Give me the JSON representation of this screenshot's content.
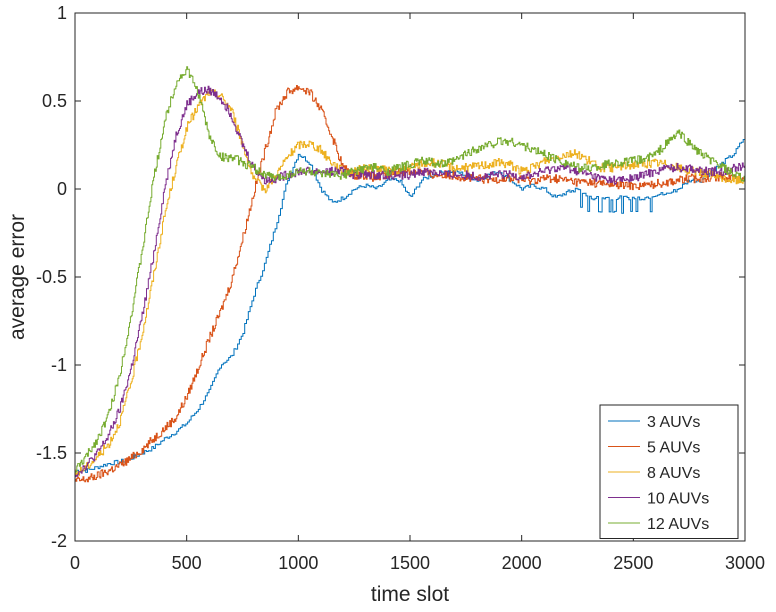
{
  "chart_data": {
    "type": "line",
    "xlabel": "time slot",
    "ylabel": "average error",
    "xlim": [
      0,
      3000
    ],
    "ylim": [
      -2,
      1
    ],
    "xticks": [
      0,
      500,
      1000,
      1500,
      2000,
      2500,
      3000
    ],
    "yticks": [
      -2,
      -1.5,
      -1,
      -0.5,
      0,
      0.5,
      1
    ],
    "xtick_labels": [
      "0",
      "500",
      "1000",
      "1500",
      "2000",
      "2500",
      "3000"
    ],
    "ytick_labels": [
      "-2",
      "-1.5",
      "-1",
      "-0.5",
      "0",
      "0.5",
      "1"
    ],
    "grid": false,
    "legend_position": "bottom-right",
    "series": [
      {
        "name": "3 AUVs",
        "color": "#0072BD",
        "x": [
          0,
          50,
          100,
          150,
          200,
          250,
          300,
          350,
          400,
          450,
          500,
          550,
          600,
          650,
          700,
          750,
          800,
          850,
          900,
          950,
          1000,
          1050,
          1100,
          1150,
          1200,
          1250,
          1300,
          1350,
          1400,
          1450,
          1500,
          1550,
          1600,
          1650,
          1700,
          1750,
          1800,
          1850,
          1900,
          1950,
          2000,
          2050,
          2100,
          2150,
          2200,
          2250,
          2300,
          2350,
          2400,
          2450,
          2500,
          2550,
          2600,
          2650,
          2700,
          2750,
          2800,
          2850,
          2900,
          2950,
          3000
        ],
        "y": [
          -1.6,
          -1.6,
          -1.58,
          -1.56,
          -1.55,
          -1.53,
          -1.5,
          -1.47,
          -1.42,
          -1.38,
          -1.33,
          -1.25,
          -1.15,
          -1.0,
          -0.95,
          -0.82,
          -0.6,
          -0.42,
          -0.2,
          0.05,
          0.2,
          0.15,
          0.0,
          -0.08,
          -0.05,
          0.0,
          0.02,
          0.0,
          0.05,
          0.05,
          -0.05,
          0.05,
          0.08,
          0.1,
          0.1,
          0.08,
          0.05,
          0.08,
          0.1,
          0.05,
          0.0,
          0.02,
          0.0,
          -0.05,
          -0.02,
          0.0,
          -0.05,
          -0.05,
          -0.05,
          -0.05,
          -0.05,
          -0.05,
          -0.03,
          -0.03,
          0.0,
          0.05,
          0.05,
          0.1,
          0.15,
          0.2,
          0.3
        ]
      },
      {
        "name": "5 AUVs",
        "color": "#D95319",
        "x": [
          0,
          50,
          100,
          150,
          200,
          250,
          300,
          350,
          400,
          450,
          500,
          550,
          600,
          650,
          700,
          750,
          800,
          850,
          900,
          950,
          1000,
          1050,
          1100,
          1150,
          1200,
          1250,
          1300,
          1350,
          1400,
          1450,
          1500,
          1550,
          1600,
          1650,
          1700,
          1750,
          1800,
          1850,
          1900,
          1950,
          2000,
          2050,
          2100,
          2150,
          2200,
          2250,
          2300,
          2350,
          2400,
          2450,
          2500,
          2550,
          2600,
          2650,
          2700,
          2750,
          2800,
          2850,
          2900,
          2950,
          3000
        ],
        "y": [
          -1.66,
          -1.65,
          -1.63,
          -1.6,
          -1.57,
          -1.53,
          -1.48,
          -1.42,
          -1.36,
          -1.3,
          -1.18,
          -1.02,
          -0.85,
          -0.7,
          -0.52,
          -0.28,
          -0.02,
          0.22,
          0.45,
          0.55,
          0.58,
          0.55,
          0.45,
          0.3,
          0.12,
          0.08,
          0.08,
          0.06,
          0.08,
          0.1,
          0.1,
          0.1,
          0.08,
          0.08,
          0.08,
          0.06,
          0.06,
          0.05,
          0.06,
          0.06,
          0.05,
          0.05,
          0.06,
          0.06,
          0.05,
          0.04,
          0.04,
          0.03,
          0.03,
          0.02,
          0.02,
          0.02,
          0.03,
          0.04,
          0.05,
          0.06,
          0.06,
          0.07,
          0.07,
          0.06,
          0.06
        ]
      },
      {
        "name": "8 AUVs",
        "color": "#EDB120",
        "x": [
          0,
          50,
          100,
          150,
          200,
          250,
          300,
          350,
          400,
          450,
          500,
          550,
          600,
          650,
          700,
          750,
          800,
          850,
          900,
          950,
          1000,
          1050,
          1100,
          1150,
          1200,
          1250,
          1300,
          1350,
          1400,
          1450,
          1500,
          1550,
          1600,
          1650,
          1700,
          1750,
          1800,
          1850,
          1900,
          1950,
          2000,
          2050,
          2100,
          2150,
          2200,
          2250,
          2300,
          2350,
          2400,
          2450,
          2500,
          2550,
          2600,
          2650,
          2700,
          2750,
          2800,
          2850,
          2900,
          2950,
          3000
        ],
        "y": [
          -1.62,
          -1.58,
          -1.52,
          -1.45,
          -1.32,
          -1.1,
          -0.82,
          -0.5,
          -0.15,
          0.12,
          0.35,
          0.47,
          0.55,
          0.53,
          0.45,
          0.25,
          0.05,
          0.0,
          0.08,
          0.18,
          0.25,
          0.26,
          0.22,
          0.15,
          0.1,
          0.1,
          0.12,
          0.12,
          0.1,
          0.1,
          0.12,
          0.14,
          0.15,
          0.14,
          0.12,
          0.12,
          0.13,
          0.14,
          0.15,
          0.14,
          0.1,
          0.12,
          0.16,
          0.18,
          0.2,
          0.2,
          0.16,
          0.12,
          0.12,
          0.13,
          0.14,
          0.14,
          0.15,
          0.14,
          0.12,
          0.1,
          0.1,
          0.08,
          0.06,
          0.05,
          0.05
        ]
      },
      {
        "name": "10 AUVs",
        "color": "#7E2F8E",
        "x": [
          0,
          50,
          100,
          150,
          200,
          250,
          300,
          350,
          400,
          450,
          500,
          550,
          600,
          650,
          700,
          750,
          800,
          850,
          900,
          950,
          1000,
          1050,
          1100,
          1150,
          1200,
          1250,
          1300,
          1350,
          1400,
          1450,
          1500,
          1550,
          1600,
          1650,
          1700,
          1750,
          1800,
          1850,
          1900,
          1950,
          2000,
          2050,
          2100,
          2150,
          2200,
          2250,
          2300,
          2350,
          2400,
          2450,
          2500,
          2550,
          2600,
          2650,
          2700,
          2750,
          2800,
          2850,
          2900,
          2950,
          3000
        ],
        "y": [
          -1.62,
          -1.57,
          -1.5,
          -1.4,
          -1.25,
          -1.02,
          -0.72,
          -0.38,
          0.0,
          0.3,
          0.48,
          0.55,
          0.56,
          0.52,
          0.42,
          0.25,
          0.12,
          0.05,
          0.06,
          0.08,
          0.1,
          0.1,
          0.1,
          0.1,
          0.1,
          0.08,
          0.08,
          0.08,
          0.08,
          0.08,
          0.08,
          0.1,
          0.1,
          0.08,
          0.08,
          0.08,
          0.07,
          0.07,
          0.08,
          0.08,
          0.07,
          0.08,
          0.1,
          0.12,
          0.12,
          0.1,
          0.08,
          0.06,
          0.05,
          0.05,
          0.06,
          0.08,
          0.1,
          0.12,
          0.12,
          0.12,
          0.1,
          0.1,
          0.1,
          0.12,
          0.14
        ]
      },
      {
        "name": "12 AUVs",
        "color": "#77AC30",
        "x": [
          0,
          50,
          100,
          150,
          200,
          250,
          300,
          350,
          400,
          450,
          500,
          550,
          600,
          650,
          700,
          750,
          800,
          850,
          900,
          950,
          1000,
          1050,
          1100,
          1150,
          1200,
          1250,
          1300,
          1350,
          1400,
          1450,
          1500,
          1550,
          1600,
          1650,
          1700,
          1750,
          1800,
          1850,
          1900,
          1950,
          2000,
          2050,
          2100,
          2150,
          2200,
          2250,
          2300,
          2350,
          2400,
          2450,
          2500,
          2550,
          2600,
          2650,
          2700,
          2750,
          2800,
          2850,
          2900,
          2950,
          3000
        ],
        "y": [
          -1.6,
          -1.52,
          -1.42,
          -1.28,
          -1.05,
          -0.72,
          -0.35,
          0.05,
          0.38,
          0.6,
          0.68,
          0.55,
          0.3,
          0.18,
          0.18,
          0.15,
          0.12,
          0.08,
          0.06,
          0.08,
          0.1,
          0.1,
          0.08,
          0.08,
          0.08,
          0.1,
          0.12,
          0.12,
          0.1,
          0.12,
          0.14,
          0.16,
          0.15,
          0.14,
          0.16,
          0.2,
          0.23,
          0.25,
          0.27,
          0.27,
          0.25,
          0.22,
          0.2,
          0.17,
          0.15,
          0.12,
          0.12,
          0.13,
          0.15,
          0.15,
          0.16,
          0.17,
          0.2,
          0.26,
          0.32,
          0.26,
          0.2,
          0.16,
          0.12,
          0.08,
          0.05
        ]
      }
    ]
  }
}
